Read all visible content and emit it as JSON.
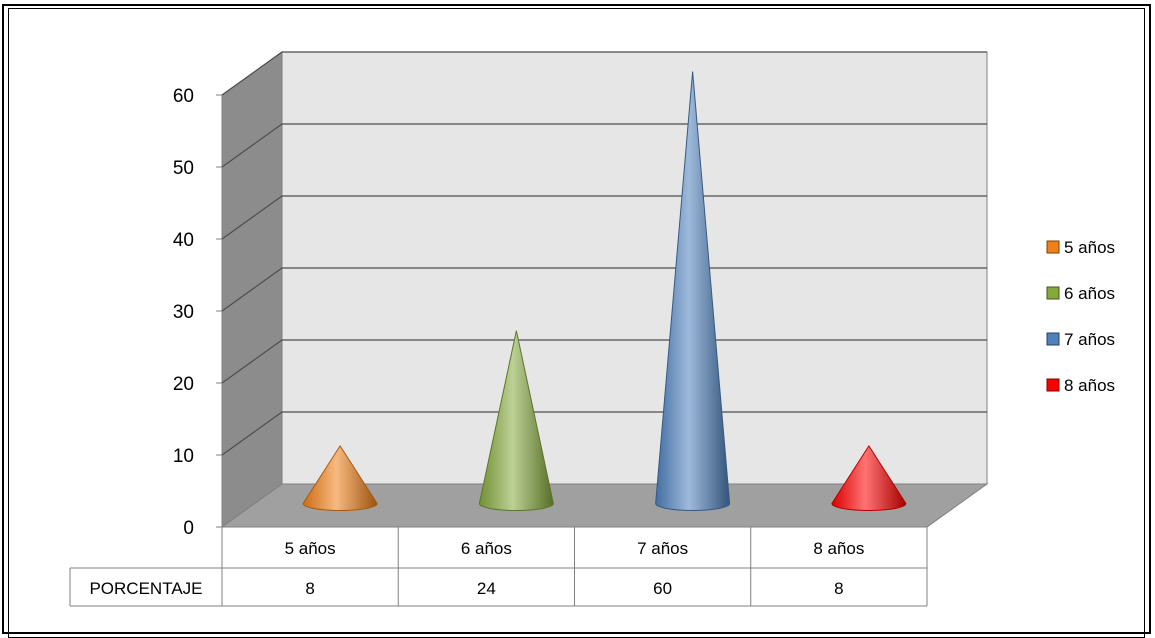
{
  "chart_data": {
    "type": "bar",
    "shape": "cone-3d",
    "categories": [
      "5 años",
      "6 años",
      "7 años",
      "8 años"
    ],
    "series": [
      {
        "name": "PORCENTAJE",
        "values": [
          8,
          24,
          60,
          8
        ]
      }
    ],
    "point_colors": [
      "#F07F17",
      "#86A93E",
      "#4F81BD",
      "#FF0000"
    ],
    "ylim": [
      0,
      60
    ],
    "yticks": [
      0,
      10,
      20,
      30,
      40,
      50,
      60
    ],
    "grid": true,
    "legend": {
      "position": "right",
      "entries": [
        "5 años",
        "6 años",
        "7 años",
        "8 años"
      ]
    },
    "data_table": {
      "row_label": "PORCENTAJE",
      "values": [
        "8",
        "24",
        "60",
        "8"
      ]
    }
  }
}
